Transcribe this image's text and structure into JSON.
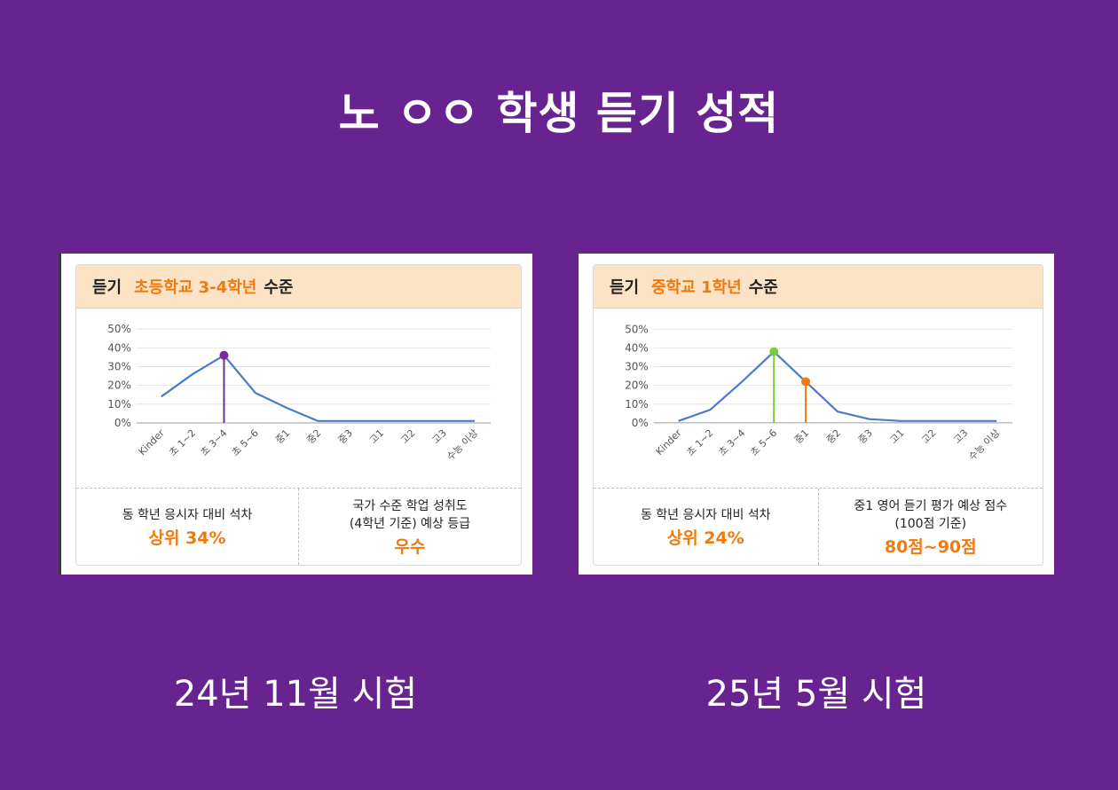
{
  "page_title": "노 ㅇㅇ 학생 듣기 성적",
  "colors": {
    "background": "#67238f",
    "accent": "#ef7a0f",
    "line": "#4a7bc8"
  },
  "cards": [
    {
      "header_prefix": "듣기",
      "header_level": "초등학교 3-4학년",
      "header_suffix": "수준",
      "footer_left_label": "동 학년 응시자 대비 석차",
      "footer_left_value": "상위 34%",
      "footer_right_label": "국가 수준 학업 성취도\n(4학년 기준) 예상 등급",
      "footer_right_value": "우수",
      "caption": "24년 11월 시험"
    },
    {
      "header_prefix": "듣기",
      "header_level": "중학교 1학년",
      "header_suffix": "수준",
      "footer_left_label": "동 학년 응시자 대비 석차",
      "footer_left_value": "상위 24%",
      "footer_right_label": "중1 영어 듣기 평가 예상 점수\n(100점 기준)",
      "footer_right_value": "80점~90점",
      "caption": "25년 5월 시험"
    }
  ],
  "chart_data": [
    {
      "type": "line",
      "categories": [
        "Kinder",
        "초 1~2",
        "초 3~4",
        "초 5~6",
        "중1",
        "중2",
        "중3",
        "고1",
        "고2",
        "고3",
        "수능 이상"
      ],
      "values": [
        14,
        26,
        36,
        16,
        8,
        1,
        1,
        1,
        1,
        1,
        1
      ],
      "ylim": [
        0,
        50
      ],
      "yticks": [
        "0%",
        "10%",
        "20%",
        "30%",
        "40%",
        "50%"
      ],
      "grid": true,
      "markers": [
        {
          "category_index": 2,
          "value": 36,
          "color": "#7b2a9c"
        }
      ]
    },
    {
      "type": "line",
      "categories": [
        "Kinder",
        "초 1~2",
        "초 3~4",
        "초 5~6",
        "중1",
        "중2",
        "중3",
        "고1",
        "고2",
        "고3",
        "수능 이상"
      ],
      "values": [
        1,
        7,
        22,
        38,
        22,
        6,
        2,
        1,
        1,
        1,
        1
      ],
      "ylim": [
        0,
        50
      ],
      "yticks": [
        "0%",
        "10%",
        "20%",
        "30%",
        "40%",
        "50%"
      ],
      "grid": true,
      "markers": [
        {
          "category_index": 3,
          "value": 38,
          "color": "#7ac943"
        },
        {
          "category_index": 4,
          "value": 22,
          "color": "#ef7a0f"
        }
      ]
    }
  ]
}
